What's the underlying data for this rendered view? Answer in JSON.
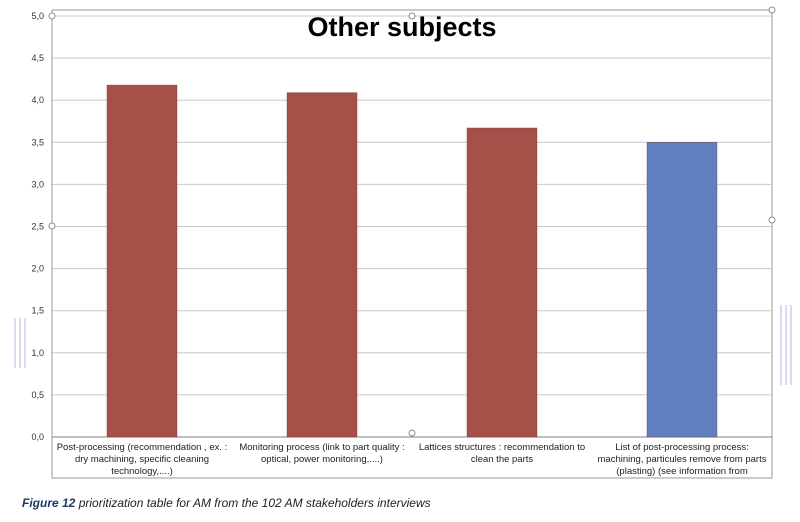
{
  "chart_data": {
    "type": "bar",
    "title": "Other subjects",
    "categories": [
      [
        "Post-processing (recommendation  , ex. :",
        "dry machining, specific cleaning",
        "technology,....)"
      ],
      [
        "Monitoring process (link to part quality :",
        "optical, power monitoring,....)"
      ],
      [
        "Lattices structures : recommendation to",
        "clean the parts"
      ],
      [
        "List of post-processing process:",
        "machining, particules remove from parts",
        "(plasting) (see information from"
      ]
    ],
    "values": [
      4.18,
      4.09,
      3.67,
      3.5
    ],
    "bar_colors": [
      "#a5514a",
      "#a5514a",
      "#a5514a",
      "#5f7fbf"
    ],
    "yticks": [
      "0,0",
      "0,5",
      "1,0",
      "1,5",
      "2,0",
      "2,5",
      "3,0",
      "3,5",
      "4,0",
      "4,5",
      "5,0"
    ],
    "ylim": [
      0,
      5
    ],
    "grid": true,
    "legend": "none"
  },
  "caption": {
    "label": "Figure 12",
    "text": " prioritization table for AM from the 102 AM stakeholders interviews"
  }
}
